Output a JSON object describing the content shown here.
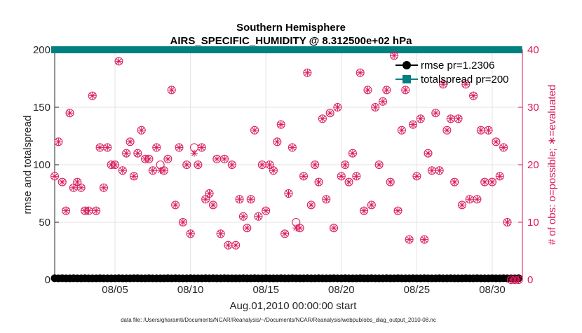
{
  "chart_data": {
    "type": "scatter",
    "title_line1": "Southern Hemisphere",
    "title_line2": "AIRS_SPECIFIC_HUMIDITY @ 8.312500e+02 hPa",
    "xlabel": "Aug.01,2010 00:00:00 start",
    "ylabel_left": "rmse and totalspread",
    "ylabel_right": "# of obs: o=possible; ∗=evaluated",
    "footer": "data file: /Users/gharamti/Documents/NCAR/Reanalysis/~/Documents/NCAR/Reanalysis/webpub/obs_diag_output_2010-08.nc",
    "xlim": [
      1.0,
      32.0
    ],
    "ylim_left": [
      0,
      200
    ],
    "ylim_right": [
      0,
      40
    ],
    "xticks": [
      5,
      10,
      15,
      20,
      25,
      30
    ],
    "xtick_labels": [
      "08/05",
      "08/10",
      "08/15",
      "08/20",
      "08/25",
      "08/30"
    ],
    "yticks_left": [
      "0",
      "50",
      "100",
      "150",
      "200"
    ],
    "yticks_right": [
      "0",
      "10",
      "20",
      "30",
      "40"
    ],
    "legend": [
      {
        "label": "rmse pr=1.2306",
        "color": "#000000"
      },
      {
        "label": "totalspread pr=200",
        "color": "#008080"
      }
    ],
    "series": [
      {
        "name": "rmse",
        "axis": "left",
        "color": "#000000",
        "x": [
          1.0,
          1.25,
          1.5,
          1.75,
          2.0,
          2.25,
          2.5,
          2.75,
          3.0,
          3.25,
          3.5,
          3.75,
          4.0,
          4.25,
          4.5,
          4.75,
          5.0,
          5.25,
          5.5,
          5.75,
          6.0,
          6.25,
          6.5,
          6.75,
          7.0,
          7.25,
          7.5,
          7.75,
          8.0,
          8.25,
          8.5,
          8.75,
          9.0,
          9.25,
          9.5,
          9.75,
          10.0,
          10.25,
          10.5,
          10.75,
          11.0,
          11.25,
          11.5,
          11.75,
          12.0,
          12.25,
          12.5,
          12.75,
          13.0,
          13.25,
          13.5,
          13.75,
          14.0,
          14.25,
          14.5,
          14.75,
          15.0,
          15.25,
          15.5,
          15.75,
          16.0,
          16.25,
          16.5,
          16.75,
          17.0,
          17.25,
          17.5,
          17.75,
          18.0,
          18.25,
          18.5,
          18.75,
          19.0,
          19.25,
          19.5,
          19.75,
          20.0,
          20.25,
          20.5,
          20.75,
          21.0,
          21.25,
          21.5,
          21.75,
          22.0,
          22.25,
          22.5,
          22.75,
          23.0,
          23.25,
          23.5,
          23.75,
          24.0,
          24.25,
          24.5,
          24.75,
          25.0,
          25.25,
          25.5,
          25.75,
          26.0,
          26.25,
          26.5,
          26.75,
          27.0,
          27.25,
          27.5,
          27.75,
          28.0,
          28.25,
          28.5,
          28.75,
          29.0,
          29.25,
          29.5,
          29.75,
          30.0,
          30.25,
          30.5,
          30.75,
          31.0,
          31.25,
          31.5,
          31.75
        ],
        "values": [
          1.3,
          1.2,
          1.3,
          1.2,
          1.2,
          1.3,
          1.2,
          1.2,
          1.3,
          1.2,
          1.2,
          1.2,
          1.3,
          1.2,
          1.2,
          1.2,
          1.2,
          1.3,
          1.2,
          1.2,
          1.2,
          1.3,
          1.3,
          1.2,
          1.2,
          1.3,
          1.2,
          1.2,
          1.2,
          1.2,
          1.3,
          1.2,
          1.3,
          1.2,
          1.2,
          1.2,
          1.3,
          1.2,
          1.2,
          1.2,
          1.3,
          1.2,
          1.3,
          1.2,
          1.2,
          1.3,
          1.2,
          1.2,
          1.2,
          1.2,
          1.3,
          1.2,
          1.2,
          1.3,
          1.2,
          1.2,
          1.3,
          1.2,
          1.2,
          1.2,
          1.3,
          1.2,
          1.2,
          1.3,
          1.2,
          1.2,
          1.2,
          1.3,
          1.2,
          1.2,
          1.3,
          1.2,
          1.2,
          1.2,
          1.3,
          1.2,
          1.2,
          1.3,
          1.2,
          1.2,
          1.2,
          1.3,
          1.2,
          1.2,
          1.3,
          1.2,
          1.2,
          1.2,
          1.3,
          1.2,
          1.2,
          1.3,
          1.2,
          1.2,
          1.2,
          1.3,
          1.2,
          1.2,
          1.3,
          1.2,
          1.2,
          1.2,
          1.3,
          1.2,
          1.2,
          1.3,
          1.2,
          1.2,
          1.2,
          1.3,
          1.2,
          1.2,
          1.3,
          1.2,
          1.2,
          1.2,
          1.3,
          1.2,
          1.2,
          1.3,
          1.2,
          1.2,
          1.2,
          1.3
        ]
      },
      {
        "name": "totalspread",
        "axis": "left",
        "color": "#008080",
        "x": [
          1.0,
          1.25,
          1.5,
          1.75,
          2.0,
          2.25,
          2.5,
          2.75,
          3.0,
          3.25,
          3.5,
          3.75,
          4.0,
          4.25,
          4.5,
          4.75,
          5.0,
          5.25,
          5.5,
          5.75,
          6.0,
          6.25,
          6.5,
          6.75,
          7.0,
          7.25,
          7.5,
          7.75,
          8.0,
          8.25,
          8.5,
          8.75,
          9.0,
          9.25,
          9.5,
          9.75,
          10.0,
          10.25,
          10.5,
          10.75,
          11.0,
          11.25,
          11.5,
          11.75,
          12.0,
          12.25,
          12.5,
          12.75,
          13.0,
          13.25,
          13.5,
          13.75,
          14.0,
          14.25,
          14.5,
          14.75,
          15.0,
          15.25,
          15.5,
          15.75,
          16.0,
          16.25,
          16.5,
          16.75,
          17.0,
          17.25,
          17.5,
          17.75,
          18.0,
          18.25,
          18.5,
          18.75,
          19.0,
          19.25,
          19.5,
          19.75,
          20.0,
          20.25,
          20.5,
          20.75,
          21.0,
          21.25,
          21.5,
          21.75,
          22.0,
          22.25,
          22.5,
          22.75,
          23.0,
          23.25,
          23.5,
          23.75,
          24.0,
          24.25,
          24.5,
          24.75,
          25.0,
          25.25,
          25.5,
          25.75,
          26.0,
          26.25,
          26.5,
          26.75,
          27.0,
          27.25,
          27.5,
          27.75,
          28.0,
          28.25,
          28.5,
          28.75,
          29.0,
          29.25,
          29.5,
          29.75,
          30.0,
          30.25,
          30.5,
          30.75,
          31.0,
          31.25,
          31.5,
          31.75
        ],
        "values": [
          200,
          200,
          200,
          200,
          200,
          200,
          200,
          200,
          200,
          200,
          200,
          200,
          200,
          200,
          200,
          200,
          200,
          200,
          200,
          200,
          200,
          200,
          200,
          200,
          200,
          200,
          200,
          200,
          200,
          200,
          200,
          200,
          200,
          200,
          200,
          200,
          200,
          200,
          200,
          200,
          200,
          200,
          200,
          200,
          200,
          200,
          200,
          200,
          200,
          200,
          200,
          200,
          200,
          200,
          200,
          200,
          200,
          200,
          200,
          200,
          200,
          200,
          200,
          200,
          200,
          200,
          200,
          200,
          200,
          200,
          200,
          200,
          200,
          200,
          200,
          200,
          200,
          200,
          200,
          200,
          200,
          200,
          200,
          200,
          200,
          200,
          200,
          200,
          200,
          200,
          200,
          200,
          200,
          200,
          200,
          200,
          200,
          200,
          200,
          200,
          200,
          200,
          200,
          200,
          200,
          200,
          200,
          200,
          200,
          200,
          200,
          200,
          200,
          200,
          200,
          200,
          200,
          200,
          200,
          200,
          200,
          200,
          200,
          200
        ]
      },
      {
        "name": "obs_possible",
        "axis": "right",
        "color": "#d9195b",
        "marker": "o",
        "x": [
          1.0,
          1.25,
          1.5,
          1.75,
          2.0,
          2.25,
          2.5,
          2.75,
          3.0,
          3.25,
          3.5,
          3.75,
          4.0,
          4.25,
          4.5,
          4.75,
          5.0,
          5.25,
          5.5,
          5.75,
          6.0,
          6.25,
          6.5,
          6.75,
          7.0,
          7.25,
          7.5,
          7.75,
          8.0,
          8.25,
          8.5,
          8.75,
          9.0,
          9.25,
          9.5,
          9.75,
          10.0,
          10.25,
          10.5,
          10.75,
          11.0,
          11.25,
          11.5,
          11.75,
          12.0,
          12.25,
          12.5,
          12.75,
          13.0,
          13.25,
          13.5,
          13.75,
          14.0,
          14.25,
          14.5,
          14.75,
          15.0,
          15.25,
          15.5,
          15.75,
          16.0,
          16.25,
          16.5,
          16.75,
          17.0,
          17.25,
          17.5,
          17.75,
          18.0,
          18.25,
          18.5,
          18.75,
          19.0,
          19.25,
          19.5,
          19.75,
          20.0,
          20.25,
          20.5,
          20.75,
          21.0,
          21.25,
          21.5,
          21.75,
          22.0,
          22.25,
          22.5,
          22.75,
          23.0,
          23.25,
          23.5,
          23.75,
          24.0,
          24.25,
          24.5,
          24.75,
          25.0,
          25.25,
          25.5,
          25.75,
          26.0,
          26.25,
          26.5,
          26.75,
          27.0,
          27.25,
          27.5,
          27.75,
          28.0,
          28.25,
          28.5,
          28.75,
          29.0,
          29.25,
          29.5,
          29.75,
          30.0,
          30.25,
          30.5,
          30.75,
          31.0,
          31.25,
          31.5,
          31.75
        ],
        "values": [
          18,
          24,
          17,
          12,
          29,
          16,
          17,
          16,
          12,
          12,
          32,
          12,
          23,
          16,
          23,
          20,
          20,
          38,
          19,
          22,
          24,
          18,
          22,
          26,
          21,
          21,
          19,
          23,
          20,
          19,
          21,
          33,
          13,
          23,
          10,
          20,
          8,
          23,
          20,
          23,
          14,
          15,
          13,
          21,
          8,
          21,
          6,
          20,
          6,
          14,
          11,
          9,
          14,
          26,
          11,
          20,
          12,
          20,
          19,
          24,
          27,
          8,
          15,
          23,
          10,
          9,
          18,
          36,
          13,
          20,
          17,
          28,
          14,
          29,
          9,
          30,
          18,
          20,
          17,
          22,
          18,
          36,
          12,
          33,
          13,
          30,
          20,
          31,
          33,
          17,
          39,
          12,
          26,
          33,
          7,
          27,
          18,
          28,
          7,
          22,
          19,
          29,
          19,
          34,
          26,
          28,
          17,
          28,
          13,
          34,
          14,
          32,
          14,
          26,
          17,
          26,
          17,
          24,
          18,
          23,
          10,
          0,
          0,
          0
        ],
        "evaluated_x": [
          1.0,
          1.25,
          1.5,
          1.75,
          2.0,
          2.25,
          2.5,
          2.75,
          3.0,
          3.25,
          3.5,
          3.75,
          4.0,
          4.25,
          4.5,
          4.75,
          5.0,
          5.25,
          5.5,
          5.75,
          6.0,
          6.25,
          6.5,
          6.75,
          7.0,
          7.25,
          7.5,
          7.75,
          8.0,
          8.25,
          8.5,
          8.75,
          9.0,
          9.25,
          9.5,
          9.75,
          10.0,
          10.25,
          10.5,
          10.75,
          11.0,
          11.25,
          11.5,
          11.75,
          12.0,
          12.25,
          12.5,
          12.75,
          13.0,
          13.25,
          13.5,
          13.75,
          14.0,
          14.25,
          14.5,
          14.75,
          15.0,
          15.25,
          15.5,
          15.75,
          16.0,
          16.25,
          16.5,
          16.75,
          17.0,
          17.25,
          17.5,
          17.75,
          18.0,
          18.25,
          18.5,
          18.75,
          19.0,
          19.25,
          19.5,
          19.75,
          20.0,
          20.25,
          20.5,
          20.75,
          21.0,
          21.25,
          21.5,
          21.75,
          22.0,
          22.25,
          22.5,
          22.75,
          23.0,
          23.25,
          23.5,
          23.75,
          24.0,
          24.25,
          24.5,
          24.75,
          25.0,
          25.25,
          25.5,
          25.75,
          26.0,
          26.25,
          26.5,
          26.75,
          27.0,
          27.25,
          27.5,
          27.75,
          28.0,
          28.25,
          28.5,
          28.75,
          29.0,
          29.25,
          29.5,
          29.75,
          30.0,
          30.25,
          30.5,
          30.75,
          31.0,
          31.25,
          31.5,
          31.75
        ],
        "evaluated_values": [
          18,
          24,
          17,
          12,
          29,
          16,
          17,
          16,
          12,
          12,
          32,
          12,
          23,
          16,
          23,
          20,
          20,
          38,
          19,
          22,
          24,
          18,
          22,
          26,
          21,
          21,
          19,
          23,
          19,
          19,
          21,
          33,
          13,
          23,
          10,
          20,
          8,
          22,
          20,
          23,
          14,
          15,
          13,
          21,
          8,
          21,
          6,
          20,
          6,
          14,
          11,
          9,
          14,
          26,
          11,
          20,
          12,
          20,
          19,
          24,
          27,
          8,
          15,
          23,
          9,
          9,
          18,
          36,
          13,
          20,
          17,
          28,
          14,
          29,
          9,
          30,
          18,
          20,
          17,
          22,
          18,
          36,
          12,
          33,
          13,
          30,
          20,
          31,
          33,
          17,
          39,
          12,
          26,
          33,
          7,
          27,
          18,
          28,
          7,
          22,
          19,
          29,
          19,
          34,
          26,
          28,
          17,
          28,
          13,
          34,
          14,
          32,
          14,
          26,
          17,
          26,
          17,
          24,
          18,
          23,
          10,
          0,
          0,
          0
        ]
      }
    ]
  }
}
